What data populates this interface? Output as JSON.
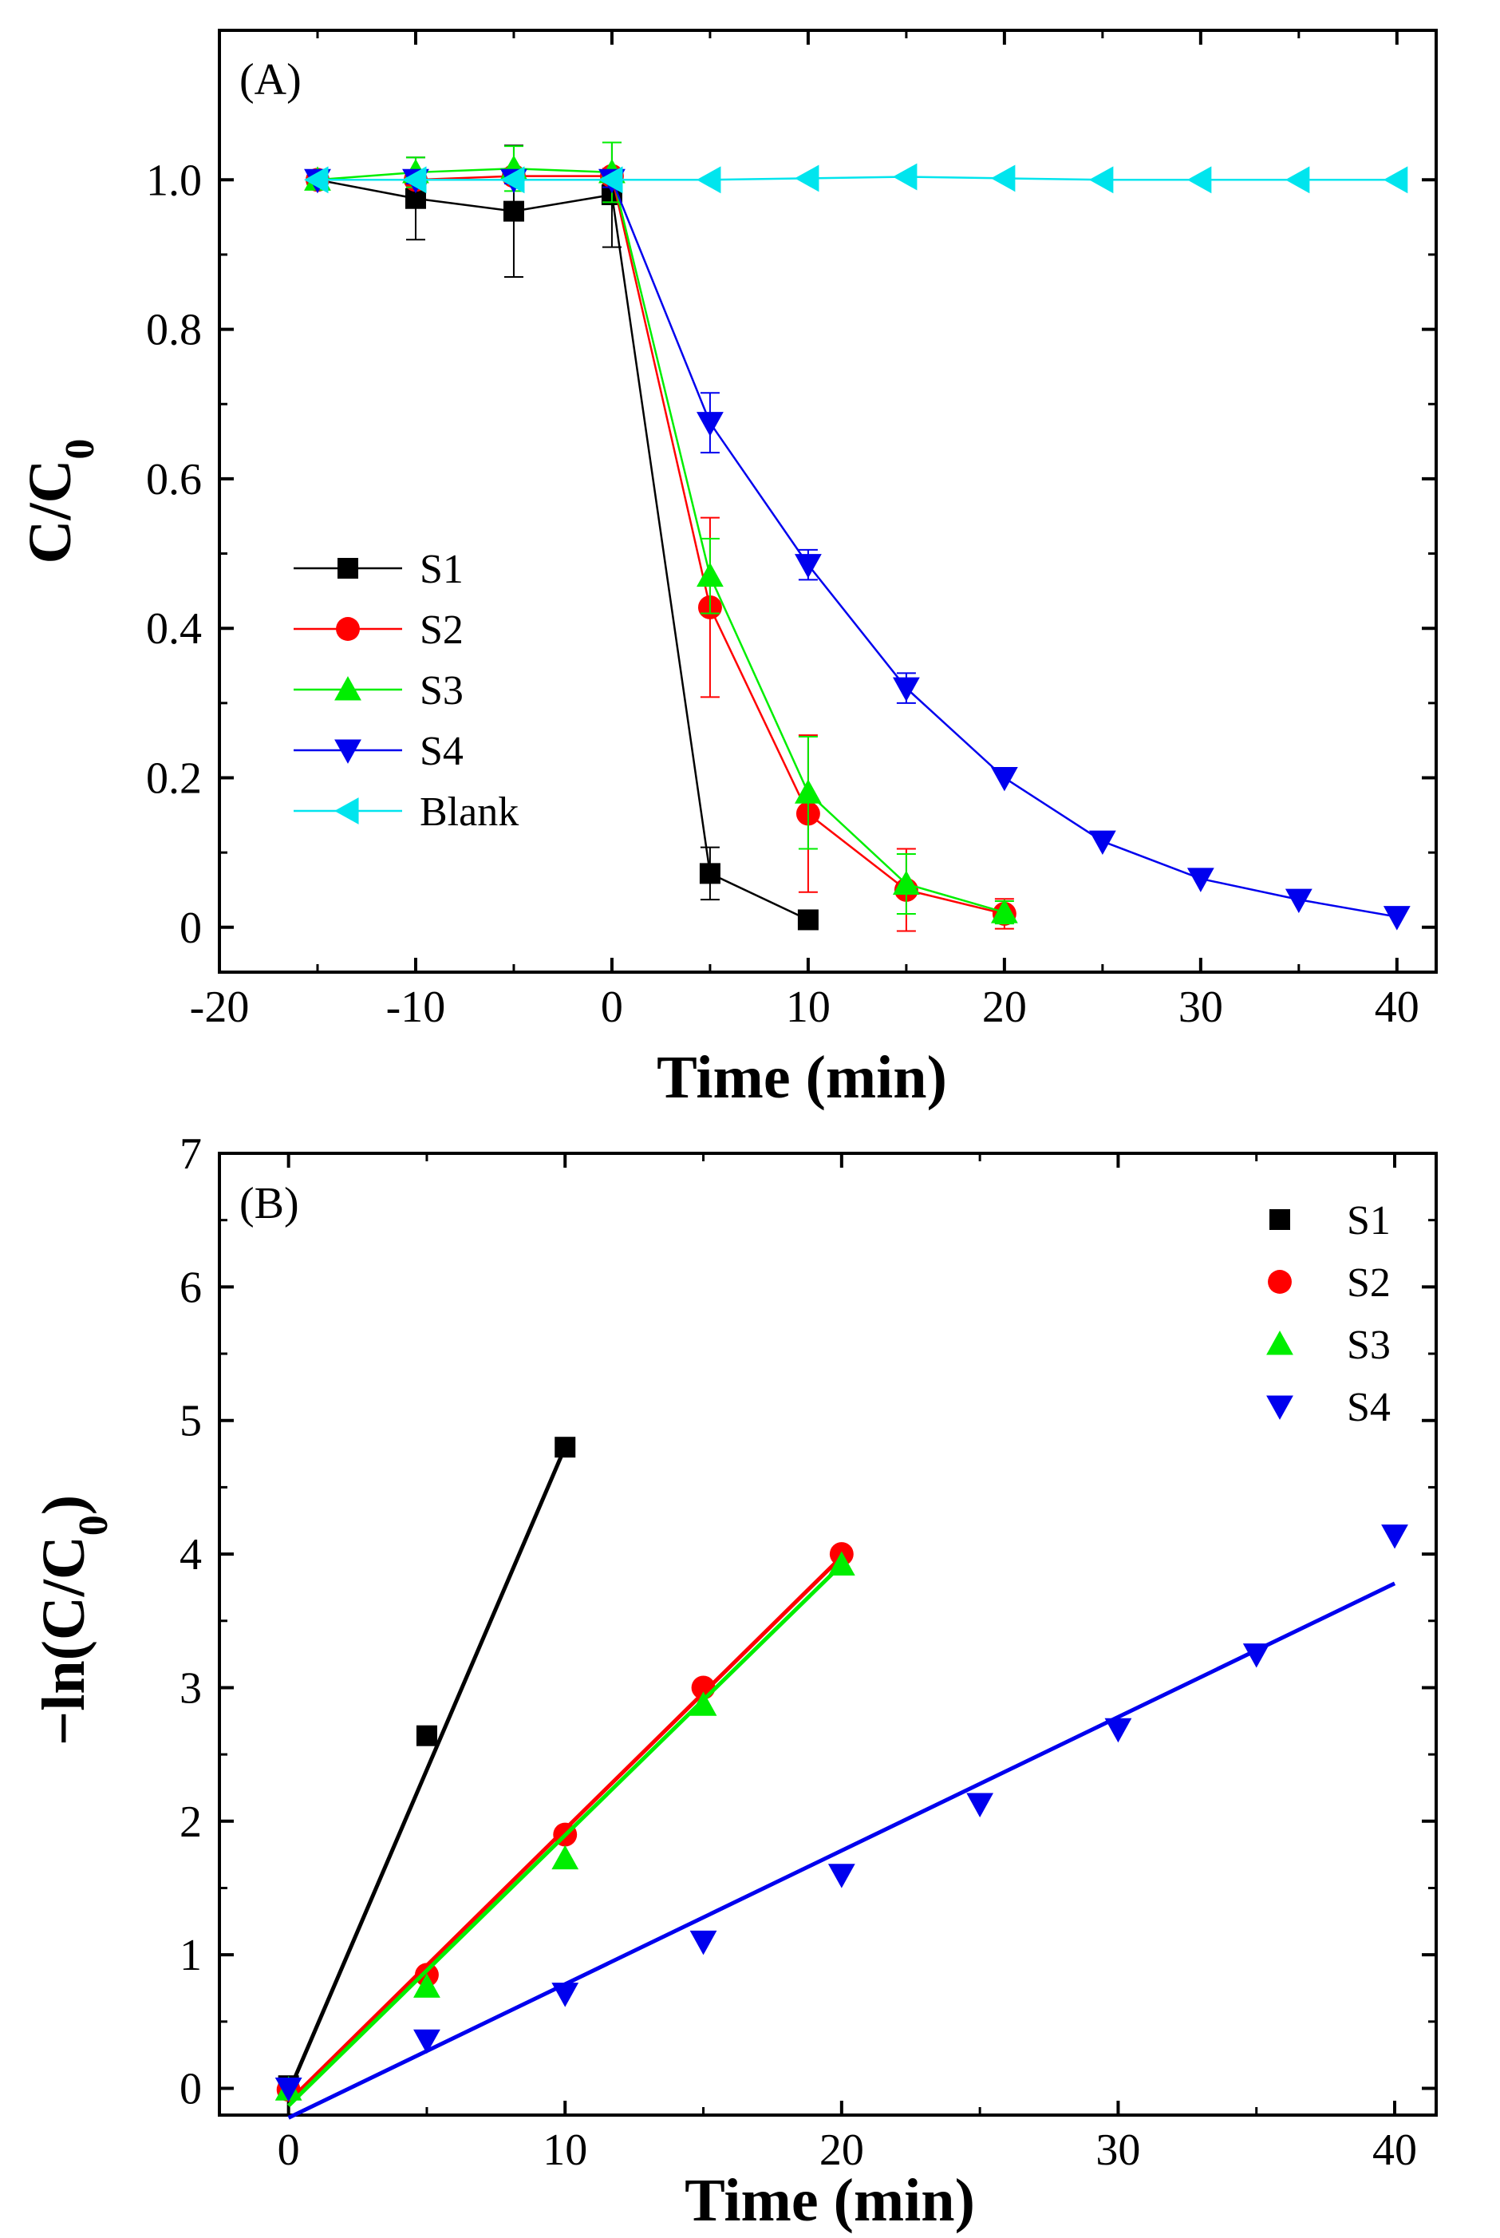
{
  "chart_data": [
    {
      "panel_label": "(A)",
      "type": "line",
      "xlabel": "Time (min)",
      "ylabel": "C/C0",
      "xlim": [
        -20,
        42
      ],
      "ylim": [
        -0.06,
        1.2
      ],
      "xticks": [
        "-20",
        "-10",
        "0",
        "10",
        "20",
        "30",
        "40"
      ],
      "yticks": [
        "0",
        "0.2",
        "0.4",
        "0.6",
        "0.8",
        "1.0"
      ],
      "legend_position": "left-middle",
      "error_bars": true,
      "series": [
        {
          "name": "S1",
          "color": "#000000",
          "marker": "square",
          "points": [
            {
              "x": -15,
              "y": 1.0,
              "err": 0.0
            },
            {
              "x": -10,
              "y": 0.975,
              "err": 0.055
            },
            {
              "x": -5,
              "y": 0.958,
              "err": 0.088
            },
            {
              "x": 0,
              "y": 0.98,
              "err": 0.07
            },
            {
              "x": 5,
              "y": 0.072,
              "err": 0.035
            },
            {
              "x": 10,
              "y": 0.01,
              "err": 0.0
            }
          ]
        },
        {
          "name": "S2",
          "color": "#ff0000",
          "marker": "circle",
          "points": [
            {
              "x": -15,
              "y": 1.0,
              "err": 0.0
            },
            {
              "x": -10,
              "y": 1.0,
              "err": 0.005
            },
            {
              "x": -5,
              "y": 1.005,
              "err": 0.01
            },
            {
              "x": 0,
              "y": 1.005,
              "err": 0.01
            },
            {
              "x": 5,
              "y": 0.428,
              "err": 0.12
            },
            {
              "x": 10,
              "y": 0.152,
              "err": 0.105
            },
            {
              "x": 15,
              "y": 0.05,
              "err": 0.055
            },
            {
              "x": 20,
              "y": 0.018,
              "err": 0.02
            }
          ]
        },
        {
          "name": "S3",
          "color": "#00ee00",
          "marker": "triangle-up",
          "points": [
            {
              "x": -15,
              "y": 1.0,
              "err": 0.0
            },
            {
              "x": -10,
              "y": 1.01,
              "err": 0.02
            },
            {
              "x": -5,
              "y": 1.015,
              "err": 0.03
            },
            {
              "x": 0,
              "y": 1.01,
              "err": 0.04
            },
            {
              "x": 5,
              "y": 0.47,
              "err": 0.05
            },
            {
              "x": 10,
              "y": 0.18,
              "err": 0.075
            },
            {
              "x": 15,
              "y": 0.058,
              "err": 0.04
            },
            {
              "x": 20,
              "y": 0.02,
              "err": 0.015
            }
          ]
        },
        {
          "name": "S4",
          "color": "#0000ee",
          "marker": "triangle-down",
          "points": [
            {
              "x": -15,
              "y": 1.0,
              "err": 0.0
            },
            {
              "x": -10,
              "y": 1.0,
              "err": 0.005
            },
            {
              "x": -5,
              "y": 1.0,
              "err": 0.005
            },
            {
              "x": 0,
              "y": 1.0,
              "err": 0.01
            },
            {
              "x": 5,
              "y": 0.675,
              "err": 0.04
            },
            {
              "x": 10,
              "y": 0.485,
              "err": 0.02
            },
            {
              "x": 15,
              "y": 0.32,
              "err": 0.02
            },
            {
              "x": 20,
              "y": 0.2,
              "err": 0.0
            },
            {
              "x": 25,
              "y": 0.115,
              "err": 0.0
            },
            {
              "x": 30,
              "y": 0.065,
              "err": 0.0
            },
            {
              "x": 35,
              "y": 0.037,
              "err": 0.0
            },
            {
              "x": 40,
              "y": 0.014,
              "err": 0.0
            }
          ]
        },
        {
          "name": "Blank",
          "color": "#00e5ee",
          "marker": "triangle-left",
          "points": [
            {
              "x": -15,
              "y": 1.0,
              "err": 0.0
            },
            {
              "x": -10,
              "y": 1.0,
              "err": 0.0
            },
            {
              "x": -5,
              "y": 1.0,
              "err": 0.0
            },
            {
              "x": 0,
              "y": 1.0,
              "err": 0.0
            },
            {
              "x": 5,
              "y": 1.0,
              "err": 0.0
            },
            {
              "x": 10,
              "y": 1.002,
              "err": 0.0
            },
            {
              "x": 15,
              "y": 1.004,
              "err": 0.0
            },
            {
              "x": 20,
              "y": 1.002,
              "err": 0.0
            },
            {
              "x": 25,
              "y": 1.0,
              "err": 0.0
            },
            {
              "x": 30,
              "y": 1.0,
              "err": 0.0
            },
            {
              "x": 35,
              "y": 1.0,
              "err": 0.0
            },
            {
              "x": 40,
              "y": 1.0,
              "err": 0.0
            }
          ]
        }
      ]
    },
    {
      "panel_label": "(B)",
      "type": "scatter",
      "xlabel": "Time (min)",
      "ylabel": "−ln(C/C0)",
      "xlim": [
        -2.5,
        41.5
      ],
      "ylim": [
        -0.2,
        7
      ],
      "xticks": [
        "0",
        "10",
        "20",
        "30",
        "40"
      ],
      "yticks": [
        "0",
        "1",
        "2",
        "3",
        "4",
        "5",
        "6",
        "7"
      ],
      "legend_position": "top-right",
      "series": [
        {
          "name": "S1",
          "color": "#000000",
          "marker": "square",
          "points": [
            {
              "x": 0,
              "y": 0.02
            },
            {
              "x": 5,
              "y": 2.64
            },
            {
              "x": 10,
              "y": 4.8
            }
          ],
          "fit": {
            "x0": 0,
            "y0": -0.03,
            "x1": 10,
            "y1": 4.8
          }
        },
        {
          "name": "S2",
          "color": "#ff0000",
          "marker": "circle",
          "points": [
            {
              "x": 0,
              "y": -0.01
            },
            {
              "x": 5,
              "y": 0.85
            },
            {
              "x": 10,
              "y": 1.9
            },
            {
              "x": 15,
              "y": 3.0
            },
            {
              "x": 20,
              "y": 4.0
            }
          ],
          "fit": {
            "x0": 0,
            "y0": -0.1,
            "x1": 20,
            "y1": 3.98
          }
        },
        {
          "name": "S3",
          "color": "#00ee00",
          "marker": "triangle-up",
          "points": [
            {
              "x": 0,
              "y": -0.01
            },
            {
              "x": 5,
              "y": 0.76
            },
            {
              "x": 10,
              "y": 1.72
            },
            {
              "x": 15,
              "y": 2.87
            },
            {
              "x": 20,
              "y": 3.92
            }
          ],
          "fit": {
            "x0": 0,
            "y0": -0.13,
            "x1": 20,
            "y1": 3.92
          }
        },
        {
          "name": "S4",
          "color": "#0000ee",
          "marker": "triangle-down",
          "points": [
            {
              "x": 0,
              "y": 0.0
            },
            {
              "x": 5,
              "y": 0.36
            },
            {
              "x": 10,
              "y": 0.71
            },
            {
              "x": 15,
              "y": 1.1
            },
            {
              "x": 20,
              "y": 1.6
            },
            {
              "x": 25,
              "y": 2.13
            },
            {
              "x": 30,
              "y": 2.69
            },
            {
              "x": 35,
              "y": 3.25
            },
            {
              "x": 40,
              "y": 4.14
            }
          ],
          "fit": {
            "x0": 0,
            "y0": -0.22,
            "x1": 40,
            "y1": 3.78
          }
        }
      ]
    }
  ]
}
